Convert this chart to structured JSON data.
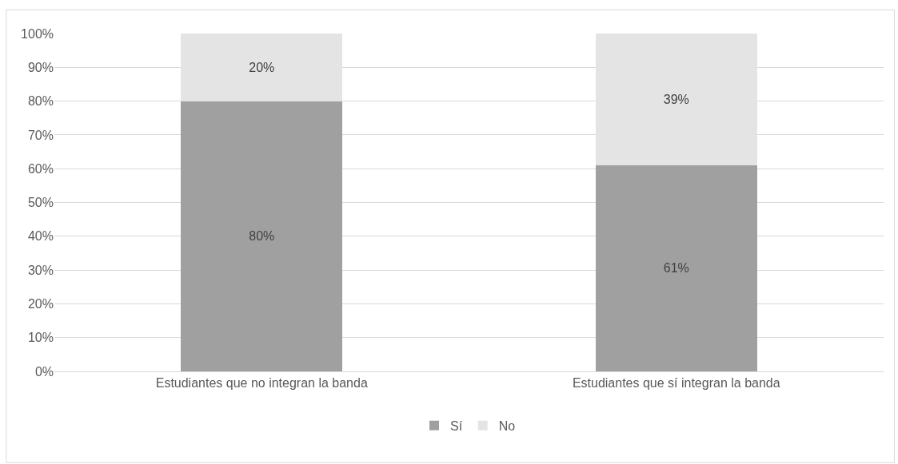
{
  "chart_data": {
    "type": "bar",
    "stacked": true,
    "categories": [
      "Estudiantes que no integran la banda",
      "Estudiantes que sí integran la banda"
    ],
    "series": [
      {
        "name": "Sí",
        "color": "#a0a0a0",
        "values": [
          80,
          61
        ],
        "value_labels": [
          "80%",
          "61%"
        ]
      },
      {
        "name": "No",
        "color": "#e4e4e4",
        "values": [
          20,
          39
        ],
        "value_labels": [
          "20%",
          "39%"
        ]
      }
    ],
    "ylim": [
      0,
      100
    ],
    "yticks": [
      {
        "value": 0,
        "label": "0%"
      },
      {
        "value": 10,
        "label": "10%"
      },
      {
        "value": 20,
        "label": "20%"
      },
      {
        "value": 30,
        "label": "30%"
      },
      {
        "value": 40,
        "label": "40%"
      },
      {
        "value": 50,
        "label": "50%"
      },
      {
        "value": 60,
        "label": "60%"
      },
      {
        "value": 70,
        "label": "70%"
      },
      {
        "value": 80,
        "label": "80%"
      },
      {
        "value": 90,
        "label": "90%"
      },
      {
        "value": 100,
        "label": "100%"
      }
    ],
    "grid": "y",
    "legend": "bottom"
  }
}
